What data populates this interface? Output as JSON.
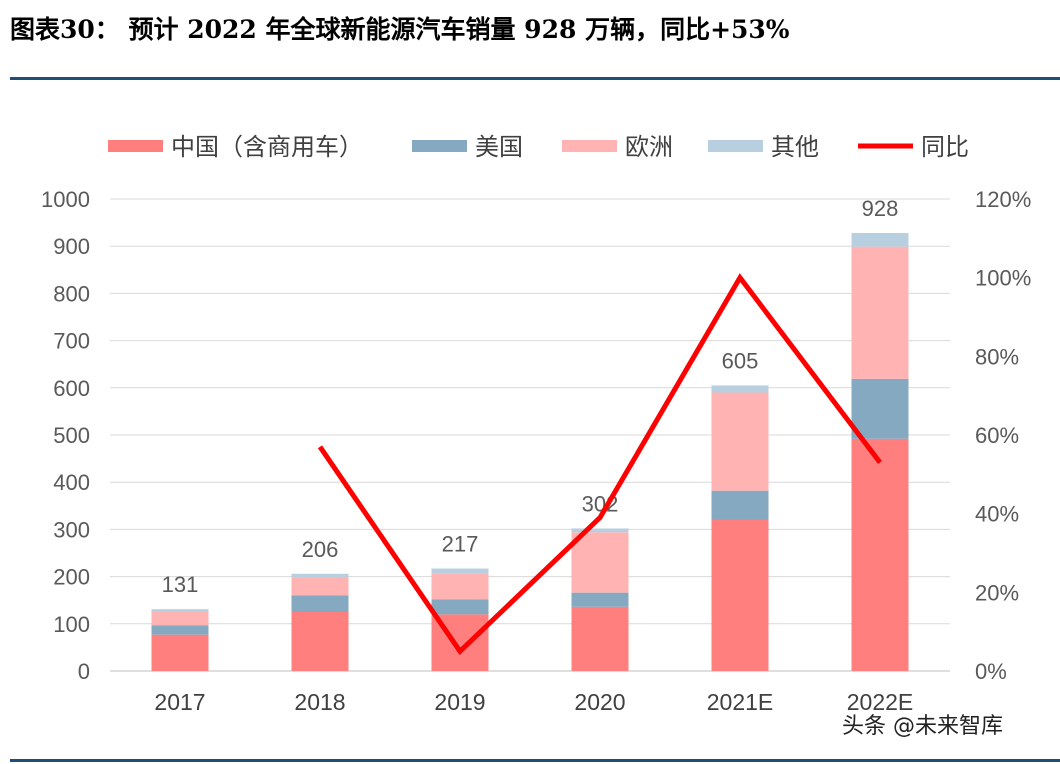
{
  "header": {
    "title": "图表30：  预计 2022 年全球新能源汽车销量 928 万辆，同比+53%"
  },
  "watermark": {
    "text": "头条 @未来智库"
  },
  "chart_data": {
    "type": "bar",
    "stacked": true,
    "categories": [
      "2017",
      "2018",
      "2019",
      "2020",
      "2021E",
      "2022E"
    ],
    "series": [
      {
        "name": "中国（含商用车）",
        "color": "#ff7f7f",
        "values": [
          77,
          125,
          120,
          136,
          320,
          492
        ]
      },
      {
        "name": "美国",
        "color": "#84a9c0",
        "values": [
          20,
          35,
          32,
          30,
          62,
          127
        ]
      },
      {
        "name": "欧洲",
        "color": "#ffb3b3",
        "values": [
          28,
          38,
          55,
          128,
          208,
          280
        ]
      },
      {
        "name": "其他",
        "color": "#b8cfe0",
        "values": [
          6,
          8,
          10,
          8,
          15,
          29
        ]
      }
    ],
    "totals": [
      131,
      206,
      217,
      302,
      605,
      928
    ],
    "line": {
      "name": "同比",
      "color": "#ff0000",
      "x": [
        "2018",
        "2019",
        "2020",
        "2021E",
        "2022E"
      ],
      "values": [
        0.57,
        0.05,
        0.39,
        1.0,
        0.53
      ]
    },
    "yaxis_left": {
      "ylim": [
        0,
        1000
      ],
      "ticks": [
        "0",
        "100",
        "200",
        "300",
        "400",
        "500",
        "600",
        "700",
        "800",
        "900",
        "1000"
      ]
    },
    "yaxis_right": {
      "ylim": [
        0,
        1.2
      ],
      "ticks": [
        "0%",
        "20%",
        "40%",
        "60%",
        "80%",
        "100%",
        "120%"
      ]
    },
    "grid": true,
    "legend_position": "top"
  }
}
